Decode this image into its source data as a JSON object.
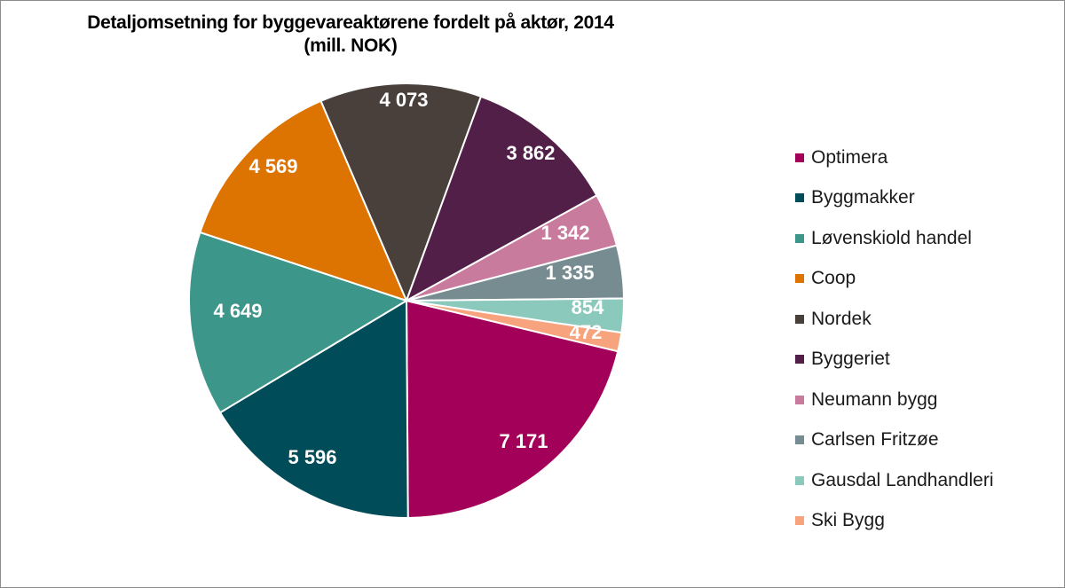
{
  "chart_data": {
    "type": "pie",
    "title": "Detaljomsetning for byggevareaktørene fordelt på aktør, 2014",
    "subtitle": "(mill. NOK)",
    "legend_position": "right",
    "slices": [
      {
        "name": "Optimera",
        "value": 7171,
        "label": "7 171",
        "color": "#a3005a"
      },
      {
        "name": "Byggmakker",
        "value": 5596,
        "label": "5 596",
        "color": "#004c58"
      },
      {
        "name": "Løvenskiold handel",
        "value": 4649,
        "label": "4 649",
        "color": "#3d968a"
      },
      {
        "name": "Coop",
        "value": 4569,
        "label": "4 569",
        "color": "#dd7300"
      },
      {
        "name": "Nordek",
        "value": 4073,
        "label": "4 073",
        "color": "#4a403b"
      },
      {
        "name": "Byggeriet",
        "value": 3862,
        "label": "3 862",
        "color": "#521f48"
      },
      {
        "name": "Neumann bygg",
        "value": 1342,
        "label": "1 342",
        "color": "#c97b9e"
      },
      {
        "name": "Carlsen Fritzøe",
        "value": 1335,
        "label": "1 335",
        "color": "#778c91"
      },
      {
        "name": "Gausdal Landhandleri",
        "value": 854,
        "label": "854",
        "color": "#8cc9bd"
      },
      {
        "name": "Ski Bygg",
        "value": 472,
        "label": "472",
        "color": "#f7a47e"
      }
    ]
  }
}
